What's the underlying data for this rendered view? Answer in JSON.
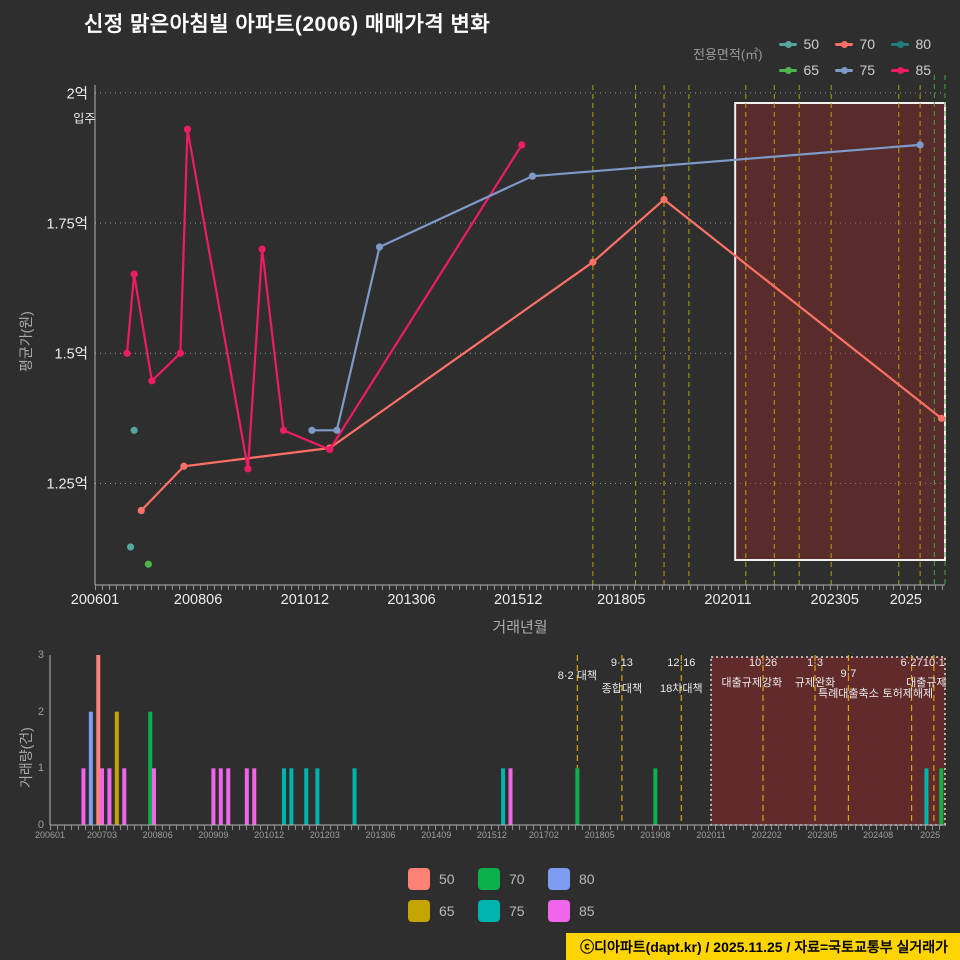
{
  "title": "신정 맑은아침빌 아파트(2006) 매매가격 변화",
  "footer": {
    "text": "ⓒ디아파트(dapt.kr) / 2025.11.25 / 자료=국토교통부 실거래가"
  },
  "chart_data": [
    {
      "type": "line",
      "title": "신정 맑은아침빌 아파트(2006) 매매가격 변화",
      "xlabel": "거래년월",
      "ylabel": "평균가(원)",
      "x_unit": "months_since_2006_01",
      "xlim": [
        0,
        239
      ],
      "ylim": [
        1.055,
        2.015
      ],
      "legend": {
        "title": "전용면적(㎡)",
        "items": [
          {
            "label": "50",
            "color": "#55a79e"
          },
          {
            "label": "70",
            "color": "#ff7166"
          },
          {
            "label": "80",
            "color": "#1f7f78"
          },
          {
            "label": "65",
            "color": "#4cb64c"
          },
          {
            "label": "75",
            "color": "#7e9ac9"
          },
          {
            "label": "85",
            "color": "#ee1c63"
          }
        ]
      },
      "y_ticks": [
        {
          "v": 2.0,
          "label": "2억"
        },
        {
          "v": 1.75,
          "label": "1.75억"
        },
        {
          "v": 1.5,
          "label": "1.5억"
        },
        {
          "v": 1.25,
          "label": "1.25억"
        }
      ],
      "x_ticks": [
        {
          "m": 0,
          "label": "200601"
        },
        {
          "m": 29,
          "label": "200806"
        },
        {
          "m": 59,
          "label": "201012"
        },
        {
          "m": 89,
          "label": "201306"
        },
        {
          "m": 119,
          "label": "201512"
        },
        {
          "m": 148,
          "label": "201805"
        },
        {
          "m": 178,
          "label": "202011"
        },
        {
          "m": 208,
          "label": "202305"
        },
        {
          "m": 228,
          "label": "2025"
        }
      ],
      "series": [
        {
          "name": "70",
          "unit_m2": 70,
          "color": "#ff7166",
          "points": [
            [
              13,
              1.198
            ],
            [
              25,
              1.283
            ],
            [
              66,
              1.318
            ],
            [
              140,
              1.675
            ],
            [
              160,
              1.795
            ],
            [
              238,
              1.375
            ]
          ]
        },
        {
          "name": "85",
          "unit_m2": 85,
          "color": "#ee1c63",
          "points": [
            [
              9,
              1.5
            ],
            [
              11,
              1.652
            ],
            [
              16,
              1.447
            ],
            [
              24,
              1.5
            ],
            [
              26,
              1.93
            ],
            [
              43,
              1.278
            ],
            [
              47,
              1.7
            ],
            [
              53,
              1.352
            ],
            [
              66,
              1.315
            ],
            [
              120,
              1.9
            ]
          ]
        },
        {
          "name": "75",
          "unit_m2": 75,
          "color": "#7e9ac9",
          "points": [
            [
              61,
              1.352
            ],
            [
              68,
              1.352
            ],
            [
              80,
              1.704
            ],
            [
              123,
              1.84
            ],
            [
              232,
              1.9
            ]
          ]
        },
        {
          "name": "50",
          "unit_m2": 50,
          "color": "#55a79e",
          "line": false,
          "points": [
            [
              10,
              1.128
            ],
            [
              11,
              1.352
            ]
          ]
        },
        {
          "name": "65",
          "unit_m2": 65,
          "color": "#4cb64c",
          "line": false,
          "points": [
            [
              15,
              1.095
            ]
          ]
        },
        {
          "name": "80",
          "unit_m2": 80,
          "color": "#1f7f78",
          "points": []
        }
      ],
      "annotations": [
        {
          "text": "입주",
          "m": -3,
          "v": 1.952
        }
      ],
      "vlines_dashed": {
        "color": "#b5a400",
        "months": [
          140,
          152,
          160,
          167,
          183,
          191,
          198,
          207,
          226,
          232
        ]
      },
      "vlines_green": {
        "color": "#3fa83f",
        "months": [
          236,
          239
        ]
      },
      "highlight_box": {
        "m0": 180,
        "m1": 239
      }
    },
    {
      "type": "bar",
      "ylabel": "거래량(건)",
      "x_unit": "months_since_2006_01",
      "xlim": [
        0,
        241
      ],
      "ylim": [
        0,
        3
      ],
      "legend": {
        "items": [
          {
            "label": "50",
            "color": "#ff8274"
          },
          {
            "label": "70",
            "color": "#0cb04c"
          },
          {
            "label": "80",
            "color": "#7d9cf2"
          },
          {
            "label": "65",
            "color": "#c4a500"
          },
          {
            "label": "75",
            "color": "#00b3ad"
          },
          {
            "label": "85",
            "color": "#ef66ea"
          }
        ]
      },
      "bar_colors": {
        "50": "#ff8274",
        "65": "#c4a500",
        "70": "#0cb04c",
        "75": "#00b3ad",
        "80": "#7d9cf2",
        "85": "#ef66ea"
      },
      "y_ticks": [
        {
          "v": 0,
          "label": "0"
        },
        {
          "v": 1,
          "label": "1"
        },
        {
          "v": 2,
          "label": "2"
        },
        {
          "v": 3,
          "label": "3"
        }
      ],
      "x_ticks": [
        {
          "m": 0,
          "label": "200601"
        },
        {
          "m": 14,
          "label": "200703"
        },
        {
          "m": 29,
          "label": "200806"
        },
        {
          "m": 44,
          "label": "200909"
        },
        {
          "m": 59,
          "label": "201012"
        },
        {
          "m": 74,
          "label": "201203"
        },
        {
          "m": 89,
          "label": "201306"
        },
        {
          "m": 104,
          "label": "201409"
        },
        {
          "m": 119,
          "label": "201512"
        },
        {
          "m": 133,
          "label": "201702"
        },
        {
          "m": 148,
          "label": "201805"
        },
        {
          "m": 163,
          "label": "201908"
        },
        {
          "m": 178,
          "label": "202011"
        },
        {
          "m": 193,
          "label": "202202"
        },
        {
          "m": 208,
          "label": "202305"
        },
        {
          "m": 223,
          "label": "202408"
        },
        {
          "m": 237,
          "label": "2025"
        }
      ],
      "bars": [
        {
          "m": 9,
          "h": 1,
          "size": "85"
        },
        {
          "m": 11,
          "h": 2,
          "size": "80"
        },
        {
          "m": 13,
          "h": 3,
          "size": "50"
        },
        {
          "m": 14,
          "h": 1,
          "size": "85"
        },
        {
          "m": 16,
          "h": 1,
          "size": "85"
        },
        {
          "m": 18,
          "h": 2,
          "size": "65"
        },
        {
          "m": 20,
          "h": 1,
          "size": "85"
        },
        {
          "m": 27,
          "h": 2,
          "size": "70"
        },
        {
          "m": 28,
          "h": 1,
          "size": "85"
        },
        {
          "m": 44,
          "h": 1,
          "size": "85"
        },
        {
          "m": 46,
          "h": 1,
          "size": "85"
        },
        {
          "m": 48,
          "h": 1,
          "size": "85"
        },
        {
          "m": 53,
          "h": 1,
          "size": "85"
        },
        {
          "m": 55,
          "h": 1,
          "size": "85"
        },
        {
          "m": 63,
          "h": 1,
          "size": "75"
        },
        {
          "m": 65,
          "h": 1,
          "size": "75"
        },
        {
          "m": 69,
          "h": 1,
          "size": "75"
        },
        {
          "m": 72,
          "h": 1,
          "size": "75"
        },
        {
          "m": 82,
          "h": 1,
          "size": "75"
        },
        {
          "m": 122,
          "h": 1,
          "size": "75"
        },
        {
          "m": 124,
          "h": 1,
          "size": "85"
        },
        {
          "m": 142,
          "h": 1,
          "size": "70"
        },
        {
          "m": 163,
          "h": 1,
          "size": "70"
        },
        {
          "m": 236,
          "h": 1,
          "size": "75"
        },
        {
          "m": 240,
          "h": 1,
          "size": "70"
        }
      ],
      "vlines": [
        {
          "m": 142,
          "color": "#dfa400"
        },
        {
          "m": 154,
          "color": "#dfa400"
        },
        {
          "m": 170,
          "color": "#dfa400"
        },
        {
          "m": 192,
          "color": "#dfa400"
        },
        {
          "m": 206,
          "color": "#dfa400"
        },
        {
          "m": 215,
          "color": "#dfa400"
        },
        {
          "m": 232,
          "color": "#dfa400"
        },
        {
          "m": 238,
          "color": "#dfa400"
        }
      ],
      "annotations": [
        {
          "text": "8·2 대책",
          "m": 142,
          "dy": 12
        },
        {
          "text": "9·13",
          "m": 154,
          "dy": 2
        },
        {
          "text": "종합대책",
          "m": 154,
          "dy": 25
        },
        {
          "text": "12·16",
          "m": 170,
          "dy": 2
        },
        {
          "text": "18차대책",
          "m": 170,
          "dy": 25
        },
        {
          "text": "10·26",
          "m": 192,
          "dy": 2
        },
        {
          "text": "대출규제강화",
          "m": 189,
          "dy": 19
        },
        {
          "text": "1·3",
          "m": 206,
          "dy": 2
        },
        {
          "text": "규제완화",
          "m": 206,
          "dy": 19
        },
        {
          "text": "9·7",
          "m": 215,
          "dy": 13
        },
        {
          "text": "특례대출축소",
          "m": 215,
          "dy": 30
        },
        {
          "text": "토허제해제",
          "m": 231,
          "dy": 30
        },
        {
          "text": "6·27",
          "m": 232,
          "dy": 2
        },
        {
          "text": "10·1",
          "m": 238,
          "dy": 2
        },
        {
          "text": "대출규제",
          "m": 236,
          "dy": 19
        }
      ],
      "highlight_box": {
        "m0": 178,
        "m1": 241
      }
    }
  ]
}
